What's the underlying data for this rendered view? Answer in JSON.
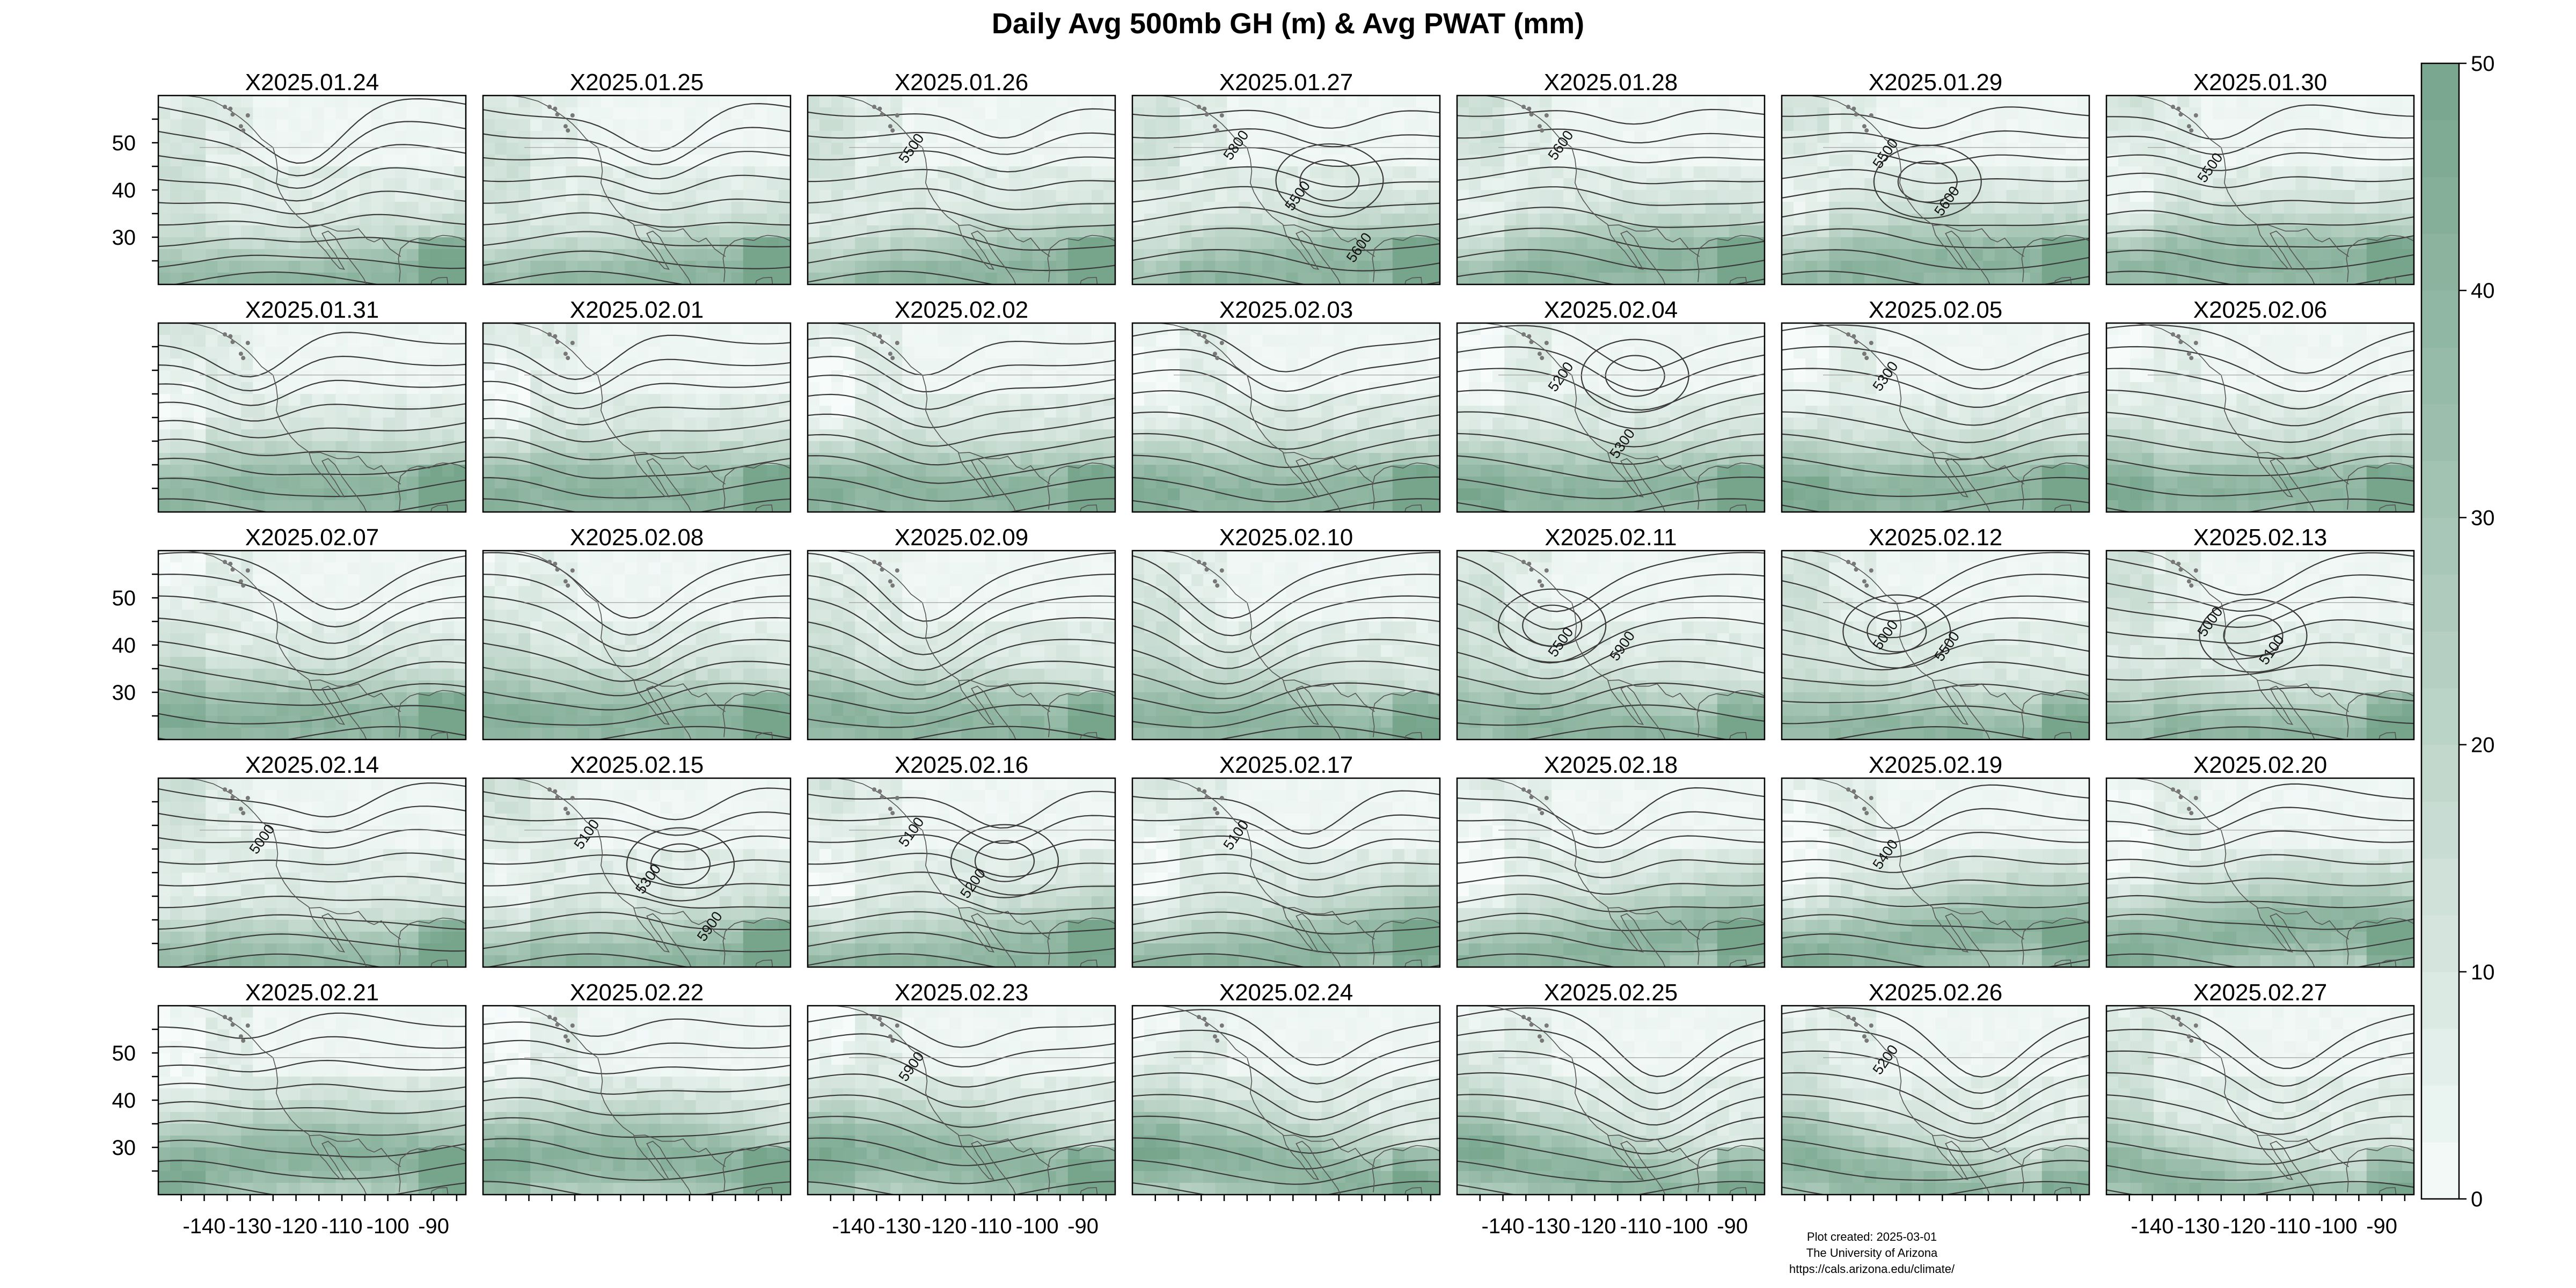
{
  "figure": {
    "title": "Daily Avg 500mb GH (m) & Avg PWAT (mm)",
    "footer": [
      "Plot created: 2025-03-01",
      "The University of Arizona",
      "https://cals.arizona.edu/climate/"
    ]
  },
  "chart_data": {
    "type": "heatmap",
    "title": "Daily Avg 500mb GH (m) & Avg PWAT (mm)",
    "layout_grid": {
      "rows": 5,
      "cols": 7
    },
    "panels": [
      {
        "label": "X2025.01.24",
        "contour_labels": []
      },
      {
        "label": "X2025.01.25",
        "contour_labels": []
      },
      {
        "label": "X2025.01.26",
        "contour_labels": [
          "5500"
        ]
      },
      {
        "label": "X2025.01.27",
        "contour_labels": [
          "5800",
          "5500",
          "5600"
        ]
      },
      {
        "label": "X2025.01.28",
        "contour_labels": [
          "5600"
        ]
      },
      {
        "label": "X2025.01.29",
        "contour_labels": [
          "5500",
          "5600"
        ]
      },
      {
        "label": "X2025.01.30",
        "contour_labels": [
          "5500"
        ]
      },
      {
        "label": "X2025.01.31",
        "contour_labels": []
      },
      {
        "label": "X2025.02.01",
        "contour_labels": []
      },
      {
        "label": "X2025.02.02",
        "contour_labels": []
      },
      {
        "label": "X2025.02.03",
        "contour_labels": []
      },
      {
        "label": "X2025.02.04",
        "contour_labels": [
          "5200",
          "5300"
        ]
      },
      {
        "label": "X2025.02.05",
        "contour_labels": [
          "5300"
        ]
      },
      {
        "label": "X2025.02.06",
        "contour_labels": []
      },
      {
        "label": "X2025.02.07",
        "contour_labels": []
      },
      {
        "label": "X2025.02.08",
        "contour_labels": []
      },
      {
        "label": "X2025.02.09",
        "contour_labels": []
      },
      {
        "label": "X2025.02.10",
        "contour_labels": []
      },
      {
        "label": "X2025.02.11",
        "contour_labels": [
          "5500",
          "5900"
        ]
      },
      {
        "label": "X2025.02.12",
        "contour_labels": [
          "5000",
          "5500"
        ]
      },
      {
        "label": "X2025.02.13",
        "contour_labels": [
          "5000",
          "5100"
        ]
      },
      {
        "label": "X2025.02.14",
        "contour_labels": [
          "5000"
        ]
      },
      {
        "label": "X2025.02.15",
        "contour_labels": [
          "5100",
          "5300",
          "5900"
        ]
      },
      {
        "label": "X2025.02.16",
        "contour_labels": [
          "5100",
          "5200"
        ]
      },
      {
        "label": "X2025.02.17",
        "contour_labels": [
          "5100"
        ]
      },
      {
        "label": "X2025.02.18",
        "contour_labels": []
      },
      {
        "label": "X2025.02.19",
        "contour_labels": [
          "5400"
        ]
      },
      {
        "label": "X2025.02.20",
        "contour_labels": []
      },
      {
        "label": "X2025.02.21",
        "contour_labels": []
      },
      {
        "label": "X2025.02.22",
        "contour_labels": []
      },
      {
        "label": "X2025.02.23",
        "contour_labels": [
          "5900"
        ]
      },
      {
        "label": "X2025.02.24",
        "contour_labels": []
      },
      {
        "label": "X2025.02.25",
        "contour_labels": []
      },
      {
        "label": "X2025.02.26",
        "contour_labels": [
          "5200"
        ]
      },
      {
        "label": "X2025.02.27",
        "contour_labels": []
      }
    ],
    "x_axis": {
      "ticks": [
        -140,
        -130,
        -120,
        -110,
        -100,
        -90
      ],
      "xlim": [
        -150,
        -83
      ],
      "shown_under_columns": [
        0,
        2,
        4,
        6
      ]
    },
    "y_axis": {
      "ticks": [
        30,
        40,
        50
      ],
      "ylim": [
        20,
        60
      ],
      "labels_on_rows": [
        0,
        2,
        4
      ]
    },
    "colorbar": {
      "range": [
        0,
        50
      ],
      "ticks": [
        0,
        10,
        20,
        30,
        40,
        50
      ],
      "low_color": "#f7fcfb",
      "high_color": "#76a58c"
    },
    "series_colors": {
      "contours": "#3a3a3a",
      "coastlines": "#555555"
    }
  }
}
